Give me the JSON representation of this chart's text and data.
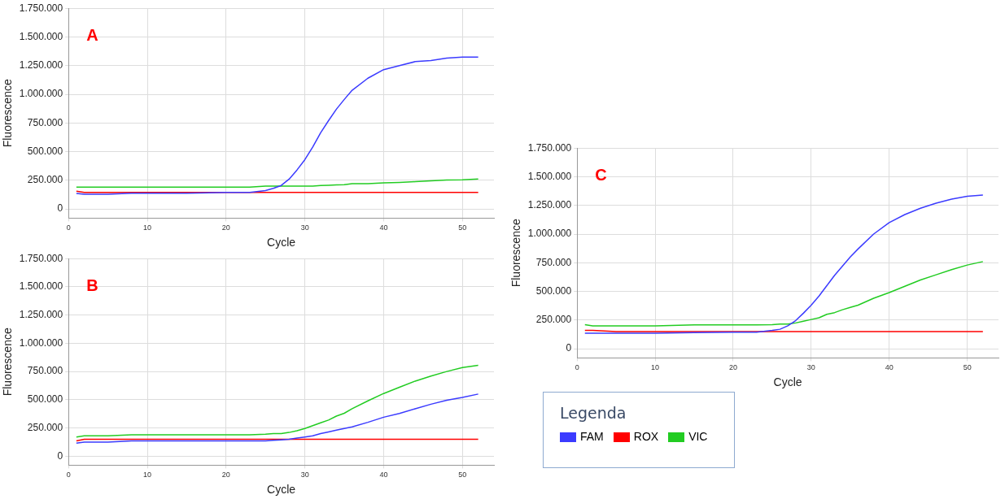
{
  "chart_data": [
    {
      "type": "line",
      "xlabel": "Cycle",
      "ylabel": "Fluorescence",
      "annotations": [
        "A"
      ],
      "grid": true,
      "marker": "none",
      "line_style": "solid",
      "xlim": [
        0,
        54
      ],
      "xticks": [
        0,
        10,
        20,
        30,
        40,
        50
      ],
      "ylim": [
        -80000,
        1750000
      ],
      "yticks": [
        {
          "value": 0,
          "label": "0"
        },
        {
          "value": 250000,
          "label": "250.000"
        },
        {
          "value": 500000,
          "label": "500.000"
        },
        {
          "value": 750000,
          "label": "750.000"
        },
        {
          "value": 1000000,
          "label": "1.000.000"
        },
        {
          "value": 1250000,
          "label": "1.250.000"
        },
        {
          "value": 1500000,
          "label": "1.500.000"
        },
        {
          "value": 1750000,
          "label": "1.750.000"
        }
      ],
      "x": [
        1,
        2,
        5,
        8,
        10,
        15,
        20,
        23,
        25,
        26,
        27,
        28,
        29,
        30,
        31,
        32,
        33,
        34,
        35,
        36,
        38,
        40,
        42,
        44,
        46,
        48,
        50,
        52
      ],
      "series": [
        {
          "color": "#3b3bff",
          "values": [
            135000,
            128000,
            128000,
            137000,
            137000,
            137000,
            145000,
            145000,
            160000,
            180000,
            205000,
            260000,
            340000,
            430000,
            540000,
            665000,
            770000,
            870000,
            955000,
            1035000,
            1140000,
            1215000,
            1250000,
            1285000,
            1295000,
            1315000,
            1325000,
            1325000
          ]
        },
        {
          "color": "#ff0000",
          "values": [
            155000,
            145000,
            145000,
            145000,
            145000,
            145000,
            145000,
            145000,
            145000,
            145000,
            145000,
            145000,
            145000,
            145000,
            145000,
            145000,
            145000,
            145000,
            145000,
            145000,
            145000,
            145000,
            145000,
            145000,
            145000,
            145000,
            145000,
            145000
          ]
        },
        {
          "color": "#22cc22",
          "values": [
            190000,
            190000,
            190000,
            190000,
            190000,
            190000,
            190000,
            190000,
            200000,
            200000,
            200000,
            200000,
            200000,
            200000,
            200000,
            205000,
            207000,
            210000,
            212000,
            220000,
            220000,
            228000,
            232000,
            238000,
            245000,
            252000,
            255000,
            262000
          ]
        }
      ]
    },
    {
      "type": "line",
      "xlabel": "Cycle",
      "ylabel": "Fluorescence",
      "annotations": [
        "B"
      ],
      "grid": true,
      "marker": "none",
      "line_style": "solid",
      "xlim": [
        0,
        54
      ],
      "xticks": [
        0,
        10,
        20,
        30,
        40,
        50
      ],
      "ylim": [
        -80000,
        1750000
      ],
      "yticks": [
        {
          "value": 0,
          "label": "0"
        },
        {
          "value": 250000,
          "label": "250.000"
        },
        {
          "value": 500000,
          "label": "500.000"
        },
        {
          "value": 750000,
          "label": "750.000"
        },
        {
          "value": 1000000,
          "label": "1.000.000"
        },
        {
          "value": 1250000,
          "label": "1.250.000"
        },
        {
          "value": 1500000,
          "label": "1.500.000"
        },
        {
          "value": 1750000,
          "label": "1.750.000"
        }
      ],
      "x": [
        1,
        2,
        5,
        8,
        10,
        15,
        20,
        23,
        25,
        26,
        27,
        28,
        29,
        30,
        31,
        32,
        33,
        34,
        35,
        36,
        38,
        40,
        42,
        44,
        46,
        48,
        50,
        52
      ],
      "series": [
        {
          "color": "#3b3bff",
          "values": [
            115000,
            125000,
            125000,
            135000,
            135000,
            135000,
            135000,
            135000,
            135000,
            140000,
            145000,
            150000,
            160000,
            170000,
            180000,
            200000,
            215000,
            230000,
            245000,
            260000,
            300000,
            345000,
            378000,
            420000,
            460000,
            495000,
            520000,
            550000
          ]
        },
        {
          "color": "#ff0000",
          "values": [
            135000,
            150000,
            150000,
            150000,
            150000,
            150000,
            150000,
            150000,
            150000,
            150000,
            150000,
            150000,
            150000,
            150000,
            150000,
            150000,
            150000,
            150000,
            150000,
            150000,
            150000,
            150000,
            150000,
            150000,
            150000,
            150000,
            150000,
            150000
          ]
        },
        {
          "color": "#22cc22",
          "values": [
            170000,
            180000,
            180000,
            190000,
            190000,
            190000,
            190000,
            190000,
            195000,
            200000,
            200000,
            210000,
            225000,
            245000,
            270000,
            295000,
            320000,
            355000,
            380000,
            420000,
            490000,
            555000,
            610000,
            665000,
            710000,
            750000,
            785000,
            805000
          ]
        }
      ]
    },
    {
      "type": "line",
      "xlabel": "Cycle",
      "ylabel": "Fluorescence",
      "annotations": [
        "C"
      ],
      "grid": true,
      "marker": "none",
      "line_style": "solid",
      "legend": "bottom",
      "legend_title": "Legenda",
      "xlim": [
        0,
        54
      ],
      "xticks": [
        0,
        10,
        20,
        30,
        40,
        50
      ],
      "ylim": [
        -80000,
        1750000
      ],
      "yticks": [
        {
          "value": 0,
          "label": "0"
        },
        {
          "value": 250000,
          "label": "250.000"
        },
        {
          "value": 500000,
          "label": "500.000"
        },
        {
          "value": 750000,
          "label": "750.000"
        },
        {
          "value": 1000000,
          "label": "1.000.000"
        },
        {
          "value": 1250000,
          "label": "1.250.000"
        },
        {
          "value": 1500000,
          "label": "1.500.000"
        },
        {
          "value": 1750000,
          "label": "1.750.000"
        }
      ],
      "x": [
        1,
        2,
        5,
        8,
        10,
        15,
        20,
        23,
        25,
        26,
        27,
        28,
        29,
        30,
        31,
        32,
        33,
        34,
        35,
        36,
        38,
        40,
        42,
        44,
        46,
        48,
        50,
        52
      ],
      "series": [
        {
          "name": "FAM",
          "color": "#3b3bff",
          "values": [
            135000,
            135000,
            135000,
            135000,
            135000,
            140000,
            145000,
            145000,
            160000,
            170000,
            200000,
            245000,
            310000,
            380000,
            460000,
            550000,
            640000,
            720000,
            800000,
            870000,
            1000000,
            1100000,
            1170000,
            1225000,
            1270000,
            1305000,
            1330000,
            1340000
          ]
        },
        {
          "name": "ROX",
          "color": "#ff0000",
          "values": [
            160000,
            160000,
            150000,
            150000,
            150000,
            150000,
            150000,
            150000,
            150000,
            150000,
            150000,
            150000,
            150000,
            150000,
            150000,
            150000,
            150000,
            150000,
            150000,
            150000,
            150000,
            150000,
            150000,
            150000,
            150000,
            150000,
            150000,
            150000
          ]
        },
        {
          "name": "VIC",
          "color": "#22cc22",
          "values": [
            210000,
            200000,
            200000,
            200000,
            200000,
            208000,
            208000,
            208000,
            210000,
            215000,
            215000,
            225000,
            240000,
            255000,
            270000,
            300000,
            315000,
            340000,
            360000,
            380000,
            440000,
            490000,
            545000,
            600000,
            645000,
            690000,
            730000,
            760000
          ]
        }
      ]
    }
  ]
}
